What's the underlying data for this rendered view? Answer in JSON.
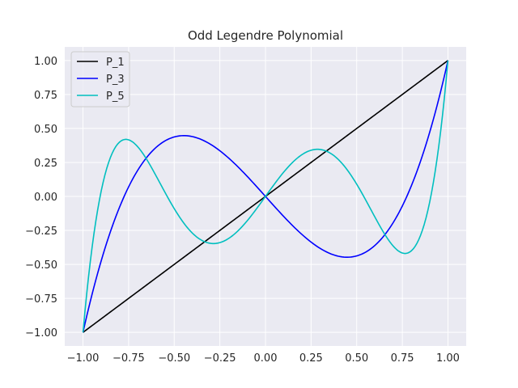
{
  "chart_data": {
    "type": "line",
    "title": "Odd Legendre Polynomial",
    "xlabel": "",
    "ylabel": "",
    "xlim": [
      -1.1,
      1.1
    ],
    "ylim": [
      -1.1,
      1.1
    ],
    "xticks": [
      -1.0,
      -0.75,
      -0.5,
      -0.25,
      0.0,
      0.25,
      0.5,
      0.75,
      1.0
    ],
    "yticks": [
      -1.0,
      -0.75,
      -0.5,
      -0.25,
      0.0,
      0.25,
      0.5,
      0.75,
      1.0
    ],
    "xtick_labels": [
      "−1.00",
      "−0.75",
      "−0.50",
      "−0.25",
      "0.00",
      "0.25",
      "0.50",
      "0.75",
      "1.00"
    ],
    "ytick_labels": [
      "−1.00",
      "−0.75",
      "−0.50",
      "−0.25",
      "0.00",
      "0.25",
      "0.50",
      "0.75",
      "1.00"
    ],
    "grid": true,
    "background": "#eaeaf2",
    "legend_position": "upper-left",
    "x": [
      -1.0,
      -0.9,
      -0.8,
      -0.7,
      -0.6,
      -0.5,
      -0.4,
      -0.3,
      -0.2,
      -0.1,
      0.0,
      0.1,
      0.2,
      0.3,
      0.4,
      0.5,
      0.6,
      0.7,
      0.8,
      0.9,
      1.0
    ],
    "series": [
      {
        "name": "P_1",
        "color": "#000000",
        "values": [
          -1.0,
          -0.9,
          -0.8,
          -0.7,
          -0.6,
          -0.5,
          -0.4,
          -0.3,
          -0.2,
          -0.1,
          0.0,
          0.1,
          0.2,
          0.3,
          0.4,
          0.5,
          0.6,
          0.7,
          0.8,
          0.9,
          1.0
        ]
      },
      {
        "name": "P_3",
        "color": "#0000ff",
        "values": [
          -1.0,
          -0.4725,
          -0.08,
          0.1925,
          0.36,
          0.4375,
          0.44,
          0.3825,
          0.28,
          0.1475,
          0.0,
          -0.1475,
          -0.28,
          -0.3825,
          -0.44,
          -0.4375,
          -0.36,
          -0.1925,
          0.08,
          0.4725,
          1.0
        ]
      },
      {
        "name": "P_5",
        "color": "#00bfbf",
        "values": [
          -1.0,
          0.0112,
          0.3995,
          0.3983,
          0.1526,
          -0.0898,
          -0.2553,
          -0.3191,
          -0.2865,
          -0.1724,
          0.0,
          0.1724,
          0.2865,
          0.3191,
          0.2553,
          0.0898,
          -0.1526,
          -0.3983,
          -0.3995,
          -0.0112,
          1.0
        ]
      }
    ]
  }
}
